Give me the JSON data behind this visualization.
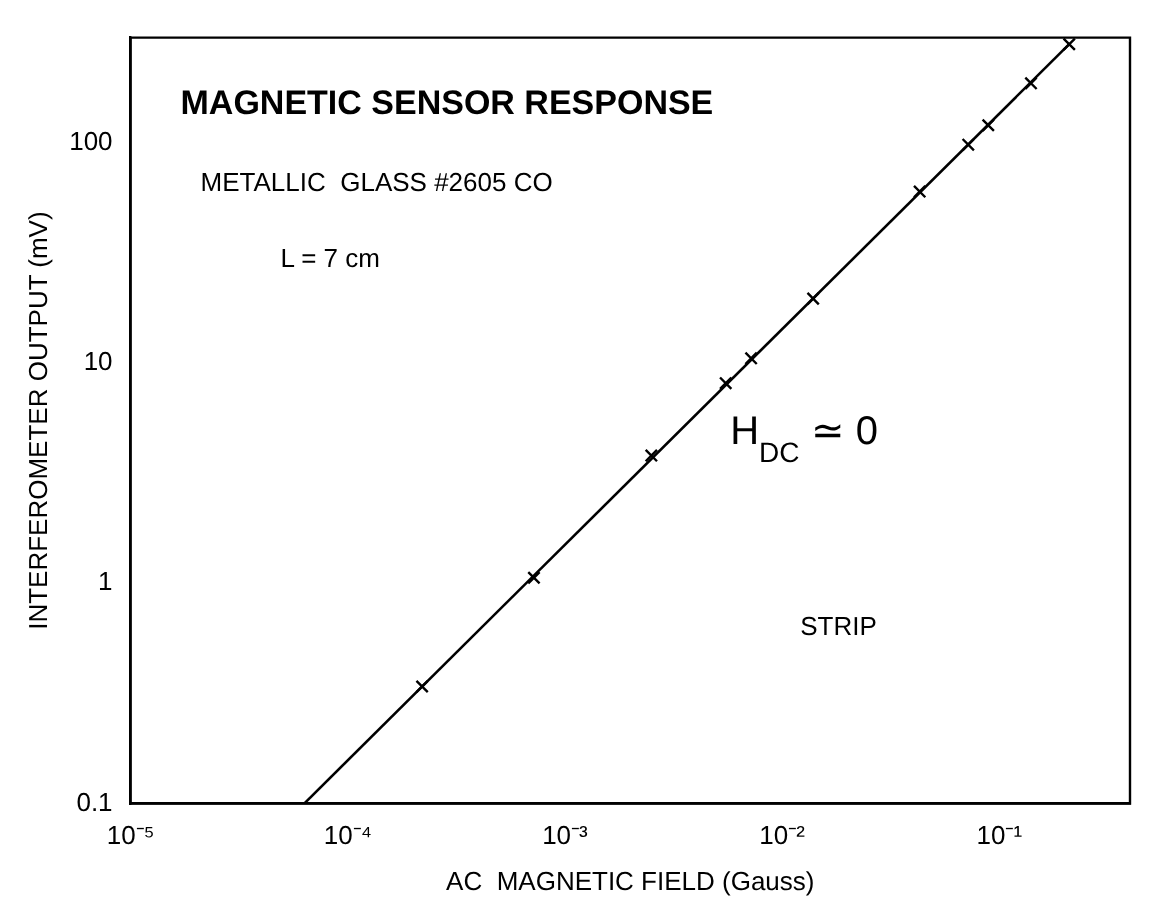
{
  "chart_data": {
    "type": "scatter",
    "title": "MAGNETIC SENSOR RESPONSE",
    "xlabel": "AC  MAGNETIC FIELD (Gauss)",
    "ylabel": "INTERFEROMETER OUTPUT (mV)",
    "annotations": [
      "METALLIC  GLASS #2605 CO",
      "L = 7 cm",
      "H$_{DC}$ ≃ 0",
      "STRIP"
    ],
    "log": "xy",
    "grid": false,
    "legend": false,
    "xlim": [
      1e-05,
      0.4
    ],
    "ylim": [
      0.1,
      300
    ],
    "xticks": [
      {
        "value": 1e-05,
        "label": "10⁻⁵"
      },
      {
        "value": 0.0001,
        "label": "10⁻⁴"
      },
      {
        "value": 0.001,
        "label": "10⁻³"
      },
      {
        "value": 0.01,
        "label": "10⁻²"
      },
      {
        "value": 0.1,
        "label": "10⁻¹"
      }
    ],
    "yticks": [
      0.1,
      1,
      10,
      100
    ],
    "series": [
      {
        "type": "scatter",
        "marker": "cross",
        "color": "#000000",
        "x": [
          0.00022,
          0.00072,
          0.0025,
          0.0055,
          0.0072,
          0.0139,
          0.043,
          0.072,
          0.089,
          0.14,
          0.21
        ],
        "values": [
          0.34,
          1.06,
          3.8,
          8.1,
          10.5,
          19.6,
          60,
          98,
          120,
          186,
          280
        ]
      },
      {
        "type": "line",
        "marker": "none",
        "color": "#000000",
        "x": [
          6.3e-05,
          0.21
        ],
        "values": [
          0.1,
          280
        ]
      }
    ]
  }
}
